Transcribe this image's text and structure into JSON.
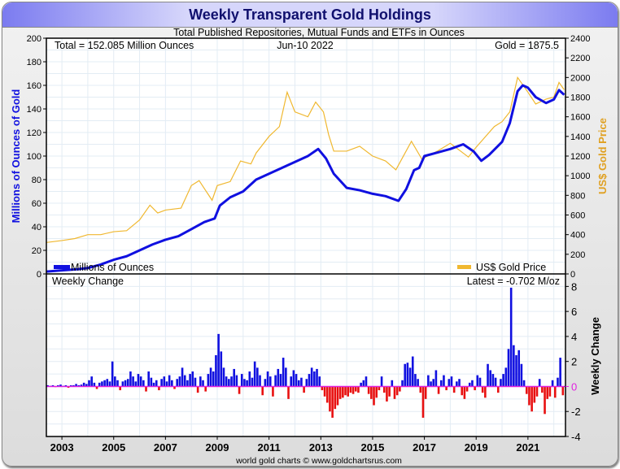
{
  "title": "Weekly Transparent Gold Holdings",
  "footer": "world gold charts © www.goldchartsrus.com",
  "chart_data": [
    {
      "type": "line",
      "subtitle": "Total Published Repositories, Mutual Funds and ETFs in Ounces",
      "annotations": {
        "total": "Total = 152.085 Million Ounces",
        "date": "Jun-10  2022",
        "gold": "Gold = 1875.5"
      },
      "ylabel": "Millions of Ounces of Gold",
      "y2label": "US$ Gold Price",
      "ylim": [
        0,
        200
      ],
      "y2lim": [
        0,
        2400
      ],
      "xlim": [
        2002.4,
        2022.45
      ],
      "yticks": [
        "0",
        "20",
        "40",
        "60",
        "80",
        "100",
        "120",
        "140",
        "160",
        "180",
        "200"
      ],
      "y2ticks": [
        "0",
        "200",
        "400",
        "600",
        "800",
        "1000",
        "1200",
        "1400",
        "1600",
        "1800",
        "2000",
        "2200",
        "2400"
      ],
      "grid": true,
      "legend": [
        {
          "name": "Millions of Ounces",
          "color": "#1010e0",
          "position": "bottom-left"
        },
        {
          "name": "US$ Gold Price",
          "color": "#f0b830",
          "position": "bottom-right"
        }
      ],
      "series": [
        {
          "name": "Millions of Ounces",
          "color": "#1010e0",
          "axis": "left",
          "points": [
            [
              2002.4,
              2
            ],
            [
              2003,
              3
            ],
            [
              2003.6,
              4
            ],
            [
              2004,
              5
            ],
            [
              2004.5,
              8
            ],
            [
              2005,
              12
            ],
            [
              2005.5,
              15
            ],
            [
              2006,
              20
            ],
            [
              2006.5,
              25
            ],
            [
              2007,
              29
            ],
            [
              2007.5,
              32
            ],
            [
              2008,
              38
            ],
            [
              2008.5,
              44
            ],
            [
              2008.9,
              47
            ],
            [
              2009.1,
              58
            ],
            [
              2009.5,
              65
            ],
            [
              2010,
              70
            ],
            [
              2010.5,
              80
            ],
            [
              2011,
              85
            ],
            [
              2011.5,
              90
            ],
            [
              2012,
              95
            ],
            [
              2012.5,
              100
            ],
            [
              2012.9,
              106
            ],
            [
              2013.2,
              98
            ],
            [
              2013.5,
              85
            ],
            [
              2014,
              73
            ],
            [
              2014.5,
              71
            ],
            [
              2015,
              68
            ],
            [
              2015.5,
              66
            ],
            [
              2016,
              62
            ],
            [
              2016.3,
              72
            ],
            [
              2016.6,
              88
            ],
            [
              2016.8,
              90
            ],
            [
              2017,
              100
            ],
            [
              2017.5,
              103
            ],
            [
              2018,
              106
            ],
            [
              2018.5,
              110
            ],
            [
              2018.9,
              104
            ],
            [
              2019.2,
              96
            ],
            [
              2019.5,
              101
            ],
            [
              2020,
              112
            ],
            [
              2020.3,
              128
            ],
            [
              2020.6,
              155
            ],
            [
              2020.8,
              160
            ],
            [
              2021,
              158
            ],
            [
              2021.3,
              150
            ],
            [
              2021.7,
              145
            ],
            [
              2022,
              148
            ],
            [
              2022.2,
              156
            ],
            [
              2022.4,
              152
            ]
          ]
        },
        {
          "name": "US$ Gold Price",
          "color": "#f0b830",
          "axis": "right",
          "points": [
            [
              2002.4,
              320
            ],
            [
              2003,
              340
            ],
            [
              2003.5,
              360
            ],
            [
              2004,
              400
            ],
            [
              2004.5,
              400
            ],
            [
              2005,
              430
            ],
            [
              2005.5,
              440
            ],
            [
              2006,
              550
            ],
            [
              2006.4,
              700
            ],
            [
              2006.7,
              620
            ],
            [
              2007,
              650
            ],
            [
              2007.6,
              670
            ],
            [
              2008,
              900
            ],
            [
              2008.3,
              950
            ],
            [
              2008.8,
              750
            ],
            [
              2009,
              900
            ],
            [
              2009.5,
              940
            ],
            [
              2009.9,
              1150
            ],
            [
              2010.3,
              1120
            ],
            [
              2010.5,
              1230
            ],
            [
              2011,
              1400
            ],
            [
              2011.4,
              1500
            ],
            [
              2011.7,
              1850
            ],
            [
              2012,
              1650
            ],
            [
              2012.5,
              1600
            ],
            [
              2012.8,
              1750
            ],
            [
              2013.1,
              1650
            ],
            [
              2013.3,
              1420
            ],
            [
              2013.5,
              1250
            ],
            [
              2014,
              1250
            ],
            [
              2014.5,
              1300
            ],
            [
              2015,
              1200
            ],
            [
              2015.5,
              1150
            ],
            [
              2015.9,
              1060
            ],
            [
              2016.5,
              1350
            ],
            [
              2016.9,
              1170
            ],
            [
              2017.5,
              1250
            ],
            [
              2018,
              1330
            ],
            [
              2018.7,
              1190
            ],
            [
              2019,
              1290
            ],
            [
              2019.7,
              1500
            ],
            [
              2020,
              1550
            ],
            [
              2020.3,
              1650
            ],
            [
              2020.6,
              2000
            ],
            [
              2021,
              1850
            ],
            [
              2021.3,
              1730
            ],
            [
              2021.7,
              1780
            ],
            [
              2022,
              1800
            ],
            [
              2022.2,
              1950
            ],
            [
              2022.4,
              1875.5
            ]
          ]
        }
      ]
    },
    {
      "type": "bar",
      "title": "Weekly Change",
      "latest": "Latest = -0.702 M/oz",
      "ylabel": "Weekly Change",
      "ylim": [
        -4,
        9
      ],
      "yticks": [
        "-4",
        "-2",
        "0",
        "2",
        "4",
        "6",
        "8"
      ],
      "xticks": [
        "2003",
        "2005",
        "2007",
        "2009",
        "2011",
        "2013",
        "2015",
        "2017",
        "2019",
        "2021"
      ],
      "x_start": 2002.4,
      "x_step": 0.1,
      "positive_color": "#1010e0",
      "negative_color": "#e81010",
      "zero_color": "#e020e0",
      "values": [
        0.1,
        0.05,
        0.1,
        -0.05,
        0.1,
        0.15,
        0.05,
        0.1,
        -0.1,
        0.1,
        0.1,
        0.2,
        0.1,
        0.15,
        0.3,
        0.2,
        0.5,
        0.8,
        0.3,
        -0.2,
        0.3,
        0.4,
        0.5,
        0.6,
        0.4,
        2.0,
        0.8,
        0.5,
        -0.3,
        0.4,
        0.5,
        0.6,
        1.2,
        0.8,
        0.4,
        1.0,
        0.8,
        0.5,
        -0.4,
        1.2,
        0.7,
        0.3,
        0.5,
        -0.3,
        0.6,
        0.8,
        0.4,
        0.9,
        0.5,
        -0.2,
        0.6,
        0.8,
        1.5,
        0.9,
        0.5,
        1.0,
        1.2,
        0.7,
        -0.5,
        0.8,
        0.5,
        -0.4,
        1.0,
        1.5,
        1.2,
        2.5,
        4.2,
        2.8,
        1.5,
        0.8,
        0.6,
        0.8,
        1.4,
        0.9,
        -0.6,
        1.0,
        0.6,
        0.5,
        1.2,
        0.7,
        2.0,
        1.5,
        0.9,
        -0.7,
        0.6,
        1.2,
        0.8,
        -0.8,
        0.9,
        1.4,
        1.0,
        2.3,
        1.5,
        -1.0,
        0.8,
        1.3,
        1.0,
        0.5,
        0.7,
        -0.5,
        0.6,
        1.0,
        1.5,
        1.2,
        1.4,
        0.8,
        -0.3,
        -0.8,
        -1.3,
        -2.0,
        -2.5,
        -1.8,
        -1.5,
        -1.0,
        -0.9,
        -0.7,
        -0.8,
        -0.5,
        -0.6,
        -0.4,
        -0.5,
        0.3,
        0.5,
        0.8,
        -0.6,
        -1.0,
        -1.5,
        -0.9,
        -0.3,
        0.8,
        -0.5,
        -1.2,
        -0.8,
        0.5,
        -1.0,
        -0.7,
        -0.4,
        0.5,
        1.8,
        1.9,
        1.5,
        2.4,
        1.0,
        0.6,
        -0.5,
        -2.5,
        -1.0,
        0.9,
        0.4,
        0.6,
        1.3,
        -0.6,
        0.5,
        0.9,
        -0.3,
        0.6,
        0.8,
        -0.5,
        0.4,
        0.6,
        -0.7,
        -1.0,
        -0.4,
        0.3,
        0.5,
        -0.3,
        0.9,
        0.7,
        -0.5,
        -0.9,
        1.8,
        1.3,
        1.0,
        0.7,
        -0.5,
        0.6,
        1.0,
        1.5,
        3.0,
        7.9,
        3.3,
        2.5,
        2.9,
        1.8,
        0.5,
        -0.6,
        -1.5,
        -2.0,
        -1.3,
        -0.8,
        0.6,
        -0.5,
        -2.2,
        -1.0,
        -0.8,
        0.5,
        -0.9,
        0.7,
        2.3,
        -0.702
      ]
    }
  ]
}
